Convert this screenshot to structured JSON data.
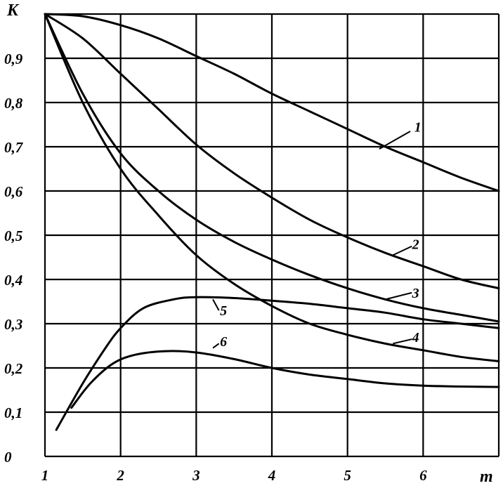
{
  "chart_data": {
    "type": "line",
    "xlabel": "m",
    "ylabel": "K",
    "xlim": [
      1,
      7
    ],
    "ylim": [
      0,
      1
    ],
    "x_ticks": [
      "1",
      "2",
      "3",
      "4",
      "5",
      "6"
    ],
    "y_ticks": [
      "0",
      "0,1",
      "0,2",
      "0,3",
      "0,4",
      "0,5",
      "0,6",
      "0,7",
      "0,8",
      "0,9"
    ],
    "grid": true,
    "series": [
      {
        "name": "1",
        "x": [
          1,
          1.5,
          2,
          2.5,
          3,
          3.5,
          4,
          4.5,
          5,
          5.5,
          6,
          6.5,
          7
        ],
        "y": [
          1.0,
          0.995,
          0.975,
          0.945,
          0.905,
          0.865,
          0.82,
          0.78,
          0.74,
          0.7,
          0.665,
          0.63,
          0.6
        ]
      },
      {
        "name": "2",
        "x": [
          1,
          1.5,
          2,
          2.5,
          3,
          3.5,
          4,
          4.5,
          5,
          5.5,
          6,
          6.5,
          7
        ],
        "y": [
          1.0,
          0.945,
          0.865,
          0.785,
          0.705,
          0.64,
          0.585,
          0.535,
          0.495,
          0.46,
          0.43,
          0.4,
          0.38
        ]
      },
      {
        "name": "3",
        "x": [
          1,
          1.5,
          2,
          2.5,
          3,
          3.5,
          4,
          4.5,
          5,
          5.5,
          6,
          6.5,
          7
        ],
        "y": [
          1.0,
          0.82,
          0.685,
          0.6,
          0.535,
          0.485,
          0.445,
          0.41,
          0.38,
          0.355,
          0.335,
          0.32,
          0.305
        ]
      },
      {
        "name": "4",
        "x": [
          1,
          1.5,
          2,
          2.5,
          3,
          3.5,
          4,
          4.5,
          5,
          5.5,
          6,
          6.5,
          7
        ],
        "y": [
          1.0,
          0.8,
          0.65,
          0.545,
          0.455,
          0.39,
          0.34,
          0.3,
          0.275,
          0.255,
          0.24,
          0.225,
          0.215
        ]
      },
      {
        "name": "5",
        "x": [
          1.15,
          1.5,
          1.8,
          2,
          2.3,
          2.7,
          3,
          3.5,
          4,
          4.5,
          5,
          5.5,
          6,
          6.5,
          7
        ],
        "y": [
          0.06,
          0.165,
          0.245,
          0.29,
          0.335,
          0.355,
          0.36,
          0.358,
          0.352,
          0.345,
          0.335,
          0.325,
          0.31,
          0.3,
          0.29
        ]
      },
      {
        "name": "6",
        "x": [
          1.35,
          1.6,
          1.9,
          2.2,
          2.6,
          3,
          3.5,
          4,
          4.5,
          5,
          5.5,
          6,
          6.5,
          7
        ],
        "y": [
          0.11,
          0.165,
          0.21,
          0.23,
          0.238,
          0.235,
          0.22,
          0.2,
          0.185,
          0.175,
          0.165,
          0.16,
          0.158,
          0.157
        ]
      }
    ],
    "curve_labels": [
      {
        "text": "1",
        "x": 5.93,
        "y": 0.745,
        "lx": 5.42,
        "ly": 0.695,
        "ax": 5.83,
        "ay": 0.735
      },
      {
        "text": "2",
        "x": 5.9,
        "y": 0.48,
        "lx": 5.6,
        "ly": 0.455,
        "ax": 5.85,
        "ay": 0.475
      },
      {
        "text": "3",
        "x": 5.9,
        "y": 0.37,
        "lx": 5.5,
        "ly": 0.355,
        "ax": 5.85,
        "ay": 0.37
      },
      {
        "text": "4",
        "x": 5.9,
        "y": 0.27,
        "lx": 5.6,
        "ly": 0.255,
        "ax": 5.85,
        "ay": 0.265
      },
      {
        "text": "5",
        "x": 3.36,
        "y": 0.33,
        "lx": 3.22,
        "ly": 0.355,
        "ax": 3.3,
        "ay": 0.33
      },
      {
        "text": "6",
        "x": 3.36,
        "y": 0.26,
        "lx": 3.22,
        "ly": 0.245,
        "ax": 3.3,
        "ay": 0.255
      }
    ]
  }
}
